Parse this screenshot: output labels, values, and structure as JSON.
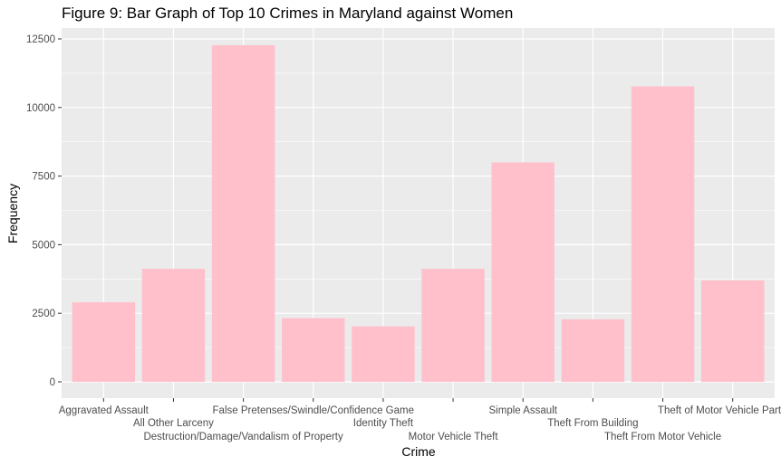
{
  "chart_data": {
    "type": "bar",
    "title": "Figure 9: Bar Graph of Top 10 Crimes in Maryland against Women",
    "xlabel": "Crime",
    "ylabel": "Frequency",
    "categories": [
      "Aggravated Assault",
      "All Other Larceny",
      "Destruction/Damage/Vandalism of Property",
      "False Pretenses/Swindle/Confidence Game",
      "Identity Theft",
      "Motor Vehicle Theft",
      "Simple Assault",
      "Theft From Building",
      "Theft From Motor Vehicle",
      "Theft of Motor Vehicle Parts or A"
    ],
    "values": [
      2900,
      4120,
      12270,
      2320,
      2020,
      4120,
      8000,
      2280,
      10770,
      3700
    ],
    "ylim": [
      0,
      12800
    ],
    "yticks": [
      0,
      2500,
      5000,
      7500,
      10000,
      12500
    ],
    "ytick_labels": [
      "0",
      "2500",
      "5000",
      "7500",
      "10000",
      "12500"
    ],
    "bar_color": "#FFC0CB",
    "panel_background": "#EBEBEB",
    "grid_color": "#FFFFFF",
    "grid": true
  }
}
